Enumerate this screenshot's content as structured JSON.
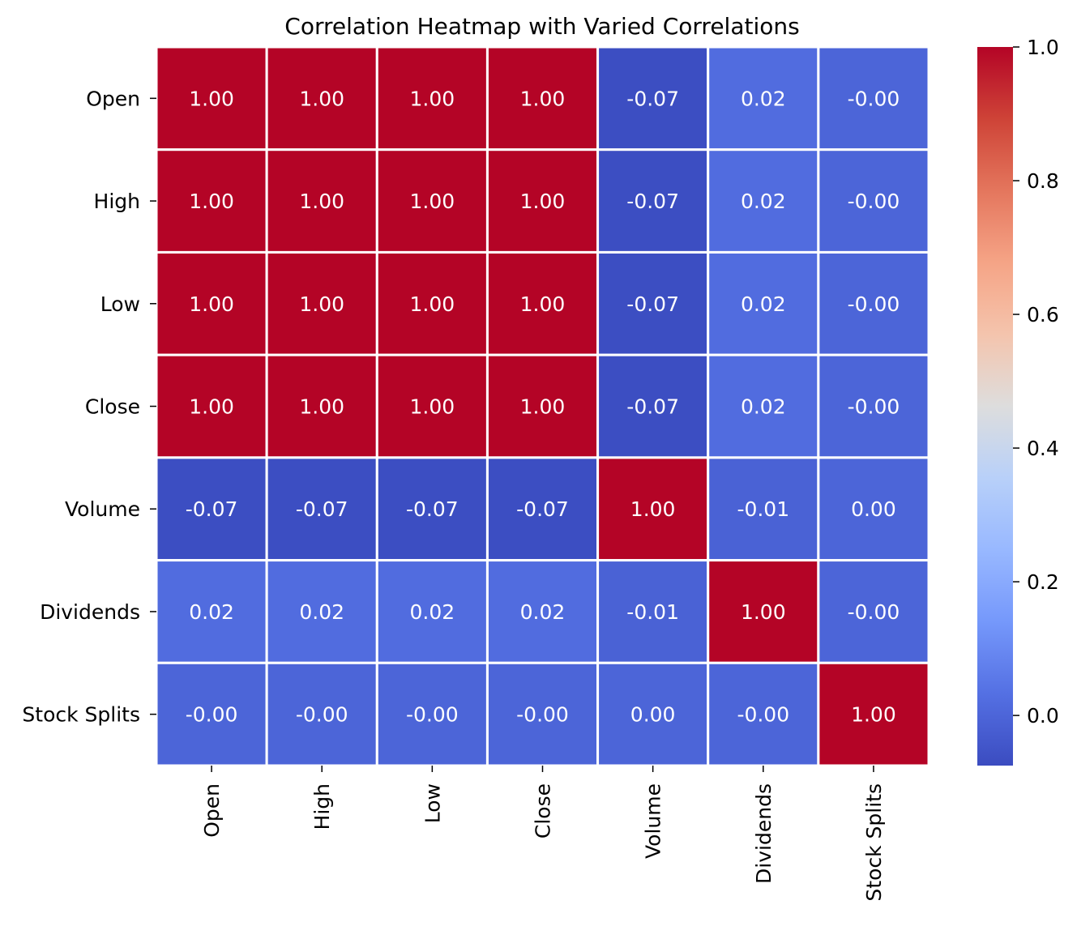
{
  "chart_data": {
    "type": "heatmap",
    "title": "Correlation Heatmap with Varied Correlations",
    "xlabel": "",
    "ylabel": "",
    "x_categories": [
      "Open",
      "High",
      "Low",
      "Close",
      "Volume",
      "Dividends",
      "Stock Splits"
    ],
    "y_categories": [
      "Open",
      "High",
      "Low",
      "Close",
      "Volume",
      "Dividends",
      "Stock Splits"
    ],
    "values": [
      [
        1.0,
        1.0,
        1.0,
        1.0,
        -0.07,
        0.02,
        -0.0
      ],
      [
        1.0,
        1.0,
        1.0,
        1.0,
        -0.07,
        0.02,
        -0.0
      ],
      [
        1.0,
        1.0,
        1.0,
        1.0,
        -0.07,
        0.02,
        -0.0
      ],
      [
        1.0,
        1.0,
        1.0,
        1.0,
        -0.07,
        0.02,
        -0.0
      ],
      [
        -0.07,
        -0.07,
        -0.07,
        -0.07,
        1.0,
        -0.01,
        0.0
      ],
      [
        0.02,
        0.02,
        0.02,
        0.02,
        -0.01,
        1.0,
        -0.0
      ],
      [
        -0.0,
        -0.0,
        -0.0,
        -0.0,
        0.0,
        -0.0,
        1.0
      ]
    ],
    "cell_labels": [
      [
        "1.00",
        "1.00",
        "1.00",
        "1.00",
        "-0.07",
        "0.02",
        "-0.00"
      ],
      [
        "1.00",
        "1.00",
        "1.00",
        "1.00",
        "-0.07",
        "0.02",
        "-0.00"
      ],
      [
        "1.00",
        "1.00",
        "1.00",
        "1.00",
        "-0.07",
        "0.02",
        "-0.00"
      ],
      [
        "1.00",
        "1.00",
        "1.00",
        "1.00",
        "-0.07",
        "0.02",
        "-0.00"
      ],
      [
        "-0.07",
        "-0.07",
        "-0.07",
        "-0.07",
        "1.00",
        "-0.01",
        "0.00"
      ],
      [
        "0.02",
        "0.02",
        "0.02",
        "0.02",
        "-0.01",
        "1.00",
        "-0.00"
      ],
      [
        "-0.00",
        "-0.00",
        "-0.00",
        "-0.00",
        "0.00",
        "-0.00",
        "1.00"
      ]
    ],
    "colormap": "coolwarm",
    "vmin": -0.075,
    "vmax": 1.0,
    "colorbar_ticks": [
      {
        "value": 0.0,
        "label": "0.0"
      },
      {
        "value": 0.2,
        "label": "0.2"
      },
      {
        "value": 0.4,
        "label": "0.4"
      },
      {
        "value": 0.6,
        "label": "0.6"
      },
      {
        "value": 0.8,
        "label": "0.8"
      },
      {
        "value": 1.0,
        "label": "1.0"
      }
    ],
    "cell_separator_color": "#ffffff",
    "annotation_color": "#ffffff",
    "grid": false,
    "legend_placement": "right"
  }
}
